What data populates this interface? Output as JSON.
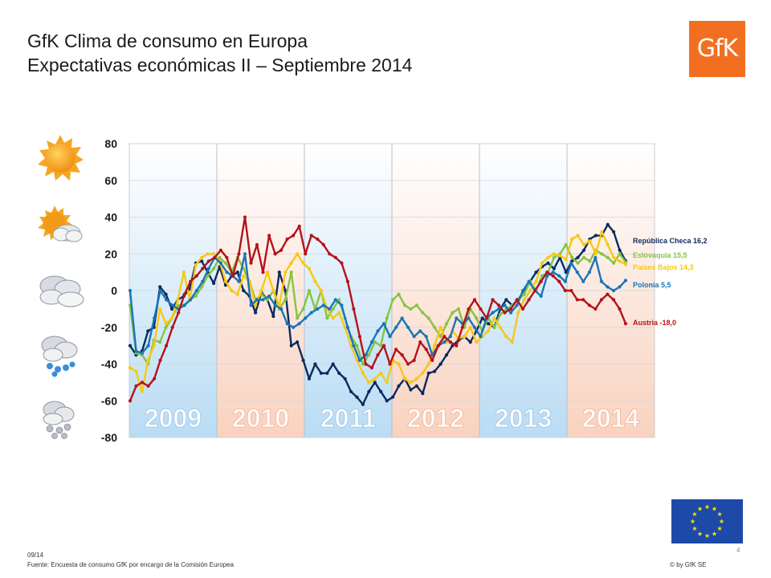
{
  "header": {
    "title_line1": "GfK Clima de consumo en Europa",
    "title_line2": "Expectativas económicas II – Septiembre 2014",
    "logo_text": "GfK"
  },
  "footer": {
    "date": "09/14",
    "source": "Fuente: Encuesta de consumo GfK por encargo de la Comisión Europea",
    "copyright": "© by GfK SE",
    "page": "4"
  },
  "weather_icons": [
    "sun-icon",
    "sun-cloud-icon",
    "cloud-icon",
    "rain-cloud-icon",
    "snow-cloud-icon"
  ],
  "colors": {
    "brand": "#f26f21",
    "band_blue": "#cfe6f7",
    "band_peach": "#fbe0d3",
    "eu_blue": "#1d4aa8",
    "eu_star": "#ffdd00"
  },
  "chart_data": {
    "type": "line",
    "ylim": [
      -80,
      80
    ],
    "yticks": [
      80,
      60,
      40,
      20,
      0,
      -20,
      -40,
      -60,
      -80
    ],
    "x_range": [
      2009.0,
      2015.0
    ],
    "year_bands": [
      {
        "label": "2009",
        "color": "#cfe6f7"
      },
      {
        "label": "2010",
        "color": "#fbe0d3"
      },
      {
        "label": "2011",
        "color": "#cfe6f7"
      },
      {
        "label": "2012",
        "color": "#fbe0d3"
      },
      {
        "label": "2013",
        "color": "#cfe6f7"
      },
      {
        "label": "2014",
        "color": "#fbe0d3"
      }
    ],
    "series": [
      {
        "name": "República Checa 16,2",
        "color": "#0d2a5e",
        "values": [
          -30,
          -35,
          -33,
          -22,
          -20,
          2,
          -2,
          -10,
          -5,
          -3,
          1,
          15,
          16,
          10,
          4,
          13,
          3,
          8,
          10,
          0,
          -3,
          -12,
          -1,
          -5,
          -14,
          10,
          0,
          -30,
          -28,
          -38,
          -48,
          -40,
          -45,
          -45,
          -40,
          -45,
          -48,
          -55,
          -58,
          -62,
          -55,
          -50,
          -55,
          -60,
          -58,
          -52,
          -48,
          -54,
          -52,
          -56,
          -45,
          -44,
          -40,
          -35,
          -30,
          -27,
          -25,
          -28,
          -22,
          -15,
          -18,
          -20,
          -10,
          -5,
          -8,
          -5,
          0,
          5,
          10,
          13,
          15,
          12,
          18,
          10,
          16,
          18,
          22,
          28,
          30,
          30,
          36,
          32,
          22,
          16.2
        ],
        "label_value": "República Checa 16,2"
      },
      {
        "name": "Eslovaquia 15,5",
        "color": "#86c440",
        "values": [
          -8,
          -34,
          -35,
          -40,
          -27,
          -28,
          -20,
          -15,
          -8,
          -8,
          -5,
          -3,
          2,
          8,
          12,
          18,
          15,
          10,
          18,
          12,
          5,
          -5,
          -2,
          -5,
          0,
          -10,
          -5,
          10,
          -15,
          -10,
          0,
          -10,
          0,
          -15,
          -10,
          -5,
          -15,
          -25,
          -30,
          -40,
          -35,
          -28,
          -30,
          -15,
          -5,
          -2,
          -8,
          -10,
          -8,
          -12,
          -15,
          -20,
          -25,
          -18,
          -12,
          -10,
          -20,
          -10,
          -15,
          -22,
          -15,
          -20,
          -13,
          -10,
          -8,
          -5,
          -2,
          5,
          0,
          8,
          10,
          18,
          20,
          25,
          18,
          15,
          18,
          16,
          22,
          20,
          18,
          15,
          20,
          15.5
        ],
        "label_value": "Eslovaquia 15,5"
      },
      {
        "name": "Países Bajos 14,3",
        "color": "#f7c815",
        "values": [
          -42,
          -44,
          -55,
          -38,
          -30,
          -10,
          -18,
          -15,
          -5,
          10,
          -5,
          14,
          18,
          20,
          20,
          16,
          5,
          0,
          -2,
          8,
          5,
          -8,
          0,
          10,
          0,
          -8,
          10,
          15,
          20,
          15,
          12,
          5,
          0,
          -10,
          -15,
          -12,
          -20,
          -30,
          -38,
          -45,
          -50,
          -48,
          -45,
          -50,
          -38,
          -40,
          -48,
          -50,
          -48,
          -45,
          -40,
          -30,
          -20,
          -28,
          -22,
          -26,
          -25,
          -20,
          -28,
          -25,
          -22,
          -15,
          -20,
          -25,
          -28,
          -12,
          -5,
          0,
          5,
          15,
          18,
          20,
          19,
          17,
          28,
          30,
          25,
          27,
          20,
          32,
          25,
          18,
          16,
          14.3
        ],
        "label_value": "Países Bajos 14,3"
      },
      {
        "name": "Polonia 5,5",
        "color": "#1a74b8",
        "values": [
          0,
          -33,
          -34,
          -30,
          -15,
          0,
          -5,
          -8,
          -10,
          -8,
          -5,
          0,
          5,
          12,
          18,
          15,
          10,
          8,
          5,
          20,
          -8,
          -5,
          -5,
          -3,
          -8,
          -10,
          -18,
          -20,
          -18,
          -15,
          -12,
          -10,
          -8,
          -10,
          -5,
          -8,
          -20,
          -30,
          -38,
          -35,
          -28,
          -22,
          -18,
          -25,
          -20,
          -15,
          -20,
          -25,
          -22,
          -25,
          -35,
          -30,
          -28,
          -25,
          -15,
          -18,
          -15,
          -20,
          -25,
          -15,
          -12,
          -10,
          -8,
          -12,
          -8,
          0,
          5,
          0,
          -3,
          8,
          10,
          8,
          5,
          15,
          10,
          5,
          10,
          18,
          5,
          2,
          0,
          2,
          5.5
        ],
        "label_value": "Polonia 5,5"
      },
      {
        "name": "Austria -18,0",
        "color": "#b5121b",
        "values": [
          -60,
          -52,
          -50,
          -52,
          -48,
          -38,
          -30,
          -20,
          -12,
          -2,
          5,
          8,
          12,
          16,
          18,
          22,
          18,
          8,
          20,
          40,
          15,
          25,
          10,
          30,
          20,
          22,
          28,
          30,
          35,
          20,
          30,
          28,
          25,
          20,
          18,
          15,
          5,
          -10,
          -25,
          -40,
          -42,
          -35,
          -30,
          -40,
          -32,
          -35,
          -40,
          -38,
          -28,
          -32,
          -38,
          -30,
          -25,
          -28,
          -30,
          -20,
          -10,
          -5,
          -10,
          -15,
          -5,
          -8,
          -12,
          -10,
          -5,
          -10,
          -5,
          0,
          5,
          10,
          8,
          5,
          0,
          0,
          -5,
          -5,
          -8,
          -10,
          -5,
          -2,
          -5,
          -10,
          -18.0
        ],
        "label_value": "Austria -18,0"
      }
    ]
  }
}
